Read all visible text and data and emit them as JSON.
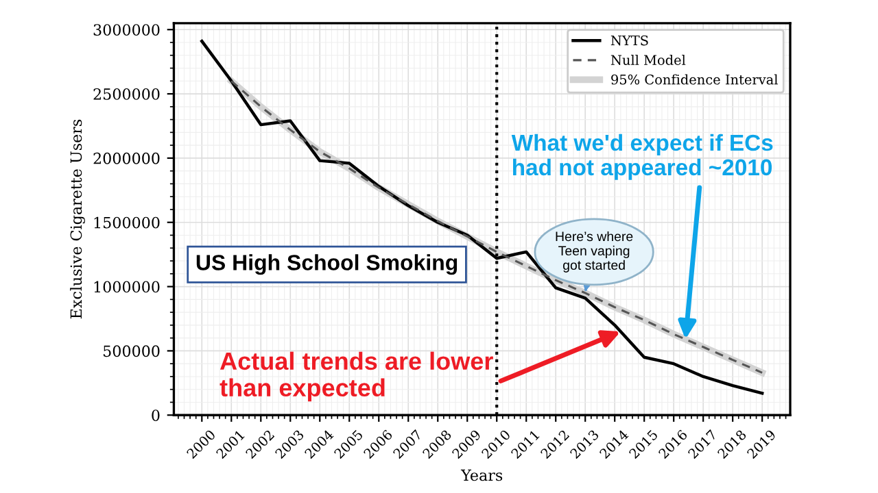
{
  "chart_data": {
    "type": "line",
    "xlabel": "Years",
    "ylabel": "Exclusive Cigarette Users",
    "x": [
      2000,
      2001,
      2002,
      2003,
      2004,
      2005,
      2006,
      2007,
      2008,
      2009,
      2010,
      2011,
      2012,
      2013,
      2014,
      2015,
      2016,
      2017,
      2018,
      2019
    ],
    "series": [
      {
        "name": "NYTS",
        "color": "#000000",
        "line_style": "solid",
        "values": [
          2910000,
          2600000,
          2260000,
          2290000,
          1980000,
          1960000,
          1780000,
          1630000,
          1500000,
          1400000,
          1220000,
          1270000,
          990000,
          910000,
          700000,
          450000,
          400000,
          300000,
          230000,
          170000
        ]
      },
      {
        "name": "Null Model",
        "color": "#555555",
        "line_style": "dashed",
        "x": [
          2001,
          2002,
          2003,
          2004,
          2005,
          2006,
          2007,
          2008,
          2009,
          2010,
          2011,
          2012,
          2013,
          2014,
          2015,
          2016,
          2017,
          2018,
          2019
        ],
        "values": [
          2600000,
          2400000,
          2220000,
          2050000,
          1920000,
          1770000,
          1640000,
          1510000,
          1390000,
          1270000,
          1160000,
          1050000,
          950000,
          840000,
          740000,
          630000,
          530000,
          430000,
          330000
        ]
      },
      {
        "name": "95% Confidence Interval",
        "type": "line",
        "line_style": "solid",
        "color": "#d3d3d3",
        "x": [
          2001,
          2002,
          2003,
          2004,
          2005,
          2006,
          2007,
          2008,
          2009,
          2010,
          2011,
          2012,
          2013,
          2014,
          2015,
          2016,
          2017,
          2018,
          2019
        ],
        "values": [
          2600000,
          2400000,
          2220000,
          2050000,
          1920000,
          1770000,
          1640000,
          1510000,
          1390000,
          1270000,
          1160000,
          1050000,
          950000,
          840000,
          740000,
          630000,
          530000,
          430000,
          330000
        ]
      }
    ],
    "xlim": [
      1999.05,
      2019.95
    ],
    "xticks": [
      2000,
      2001,
      2002,
      2003,
      2004,
      2005,
      2006,
      2007,
      2008,
      2009,
      2010,
      2011,
      2012,
      2013,
      2014,
      2015,
      2016,
      2017,
      2018,
      2019
    ],
    "ylim": [
      0,
      3050000
    ],
    "yticks": [
      0,
      500000,
      1000000,
      1500000,
      2000000,
      2500000,
      3000000
    ],
    "ref_lines": [
      {
        "axis": "x",
        "value": 2010,
        "color": "#000000",
        "line_style": "dotted"
      }
    ],
    "grid": true,
    "legend": "top right",
    "marker": "none",
    "annotations": [
      "US High School Smoking",
      {
        "text": "What we'd expect if ECs\nhad not appeared ~2010",
        "x": 2016.4,
        "y": 590000
      },
      {
        "text": "Here’s where\nTeen vaping\ngot started",
        "x": 2013.0,
        "y": 960000
      },
      {
        "text": "Actual trends are lower\nthan expected",
        "x": 2014.2,
        "y": 650000
      }
    ]
  }
}
